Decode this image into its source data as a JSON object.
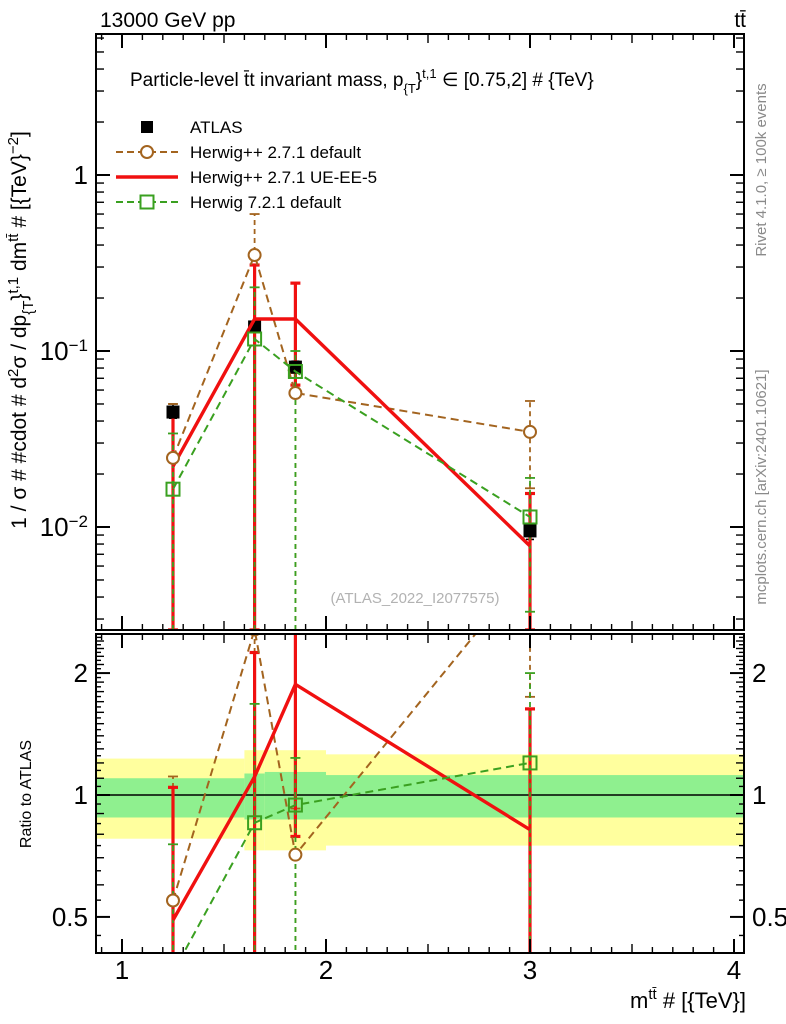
{
  "header": {
    "left": "13000 GeV pp",
    "right": "tt̄"
  },
  "plot_title": {
    "p1": "Particle-level t̄t invariant mass, p",
    "sub": "{T",
    "brace": "}",
    "sup": "t,1",
    "p2": " ∈ [0.75,2] # {TeV}"
  },
  "legend": {
    "entries": [
      {
        "label": "ATLAS"
      },
      {
        "label": "Herwig++ 2.7.1 default"
      },
      {
        "label": "Herwig++ 2.7.1 UE-EE-5"
      },
      {
        "label": "Herwig 7.2.1 default"
      }
    ]
  },
  "watermark": "(ATLAS_2022_I2077575)",
  "right_margin": {
    "top": "Rivet 4.1.0, ≥ 100k events",
    "bottom": "mcplots.cern.ch [arXiv:2401.10621]"
  },
  "axis_titles": {
    "y_main": {
      "p1": "1 / σ # #cdot # d",
      "sup1": "2",
      "p2": "σ / dp",
      "sub1": "{T",
      "p3": "}",
      "sup2": "t,1",
      "p4": " dm",
      "sup3": "tt̄",
      "p5": " # [{TeV}",
      "sup4": "−2",
      "p6": "]"
    },
    "x_main": {
      "p1": "m",
      "sup": "tt̄",
      "p2": " # [{TeV}]"
    },
    "y_ratio": "Ratio to ATLAS"
  },
  "chart_data": {
    "type": "line",
    "title": "Particle-level ttbar invariant mass, pT(t,1) in [0.75,2] TeV",
    "xlabel": "m(ttbar) [TeV]",
    "ylabel": "1/sigma d2sigma/dpT dm [TeV^-2]",
    "x": [
      1.25,
      1.65,
      1.85,
      3.0
    ],
    "xlim": [
      0.8725,
      4.049
    ],
    "ylim_main": [
      0.0026,
      6.3
    ],
    "ylim_ratio": [
      0.407,
      2.5
    ],
    "x_ticks": [
      {
        "v": 1,
        "label": "1"
      },
      {
        "v": 2,
        "label": "2"
      },
      {
        "v": 3,
        "label": "3"
      },
      {
        "v": 4,
        "label": "4"
      }
    ],
    "y_ticks_main": [
      {
        "v": 1,
        "base": "1",
        "exp": ""
      },
      {
        "v": 0.1,
        "base": "10",
        "exp": "−1"
      },
      {
        "v": 0.01,
        "base": "10",
        "exp": "−2"
      }
    ],
    "y_ticks_ratio": [
      {
        "v": 2,
        "label": "2"
      },
      {
        "v": 1,
        "label": "1"
      },
      {
        "v": 0.5,
        "label": "0.5"
      }
    ],
    "series": [
      {
        "name": "ATLAS",
        "color": "#000000",
        "style": "points",
        "marker": "filled-square",
        "values": [
          0.045,
          0.137,
          0.081,
          0.0095
        ],
        "err": [
          [
            0.0415,
            0.05
          ],
          [
            0.128,
            0.147
          ],
          [
            0.075,
            0.0875
          ],
          [
            0.0085,
            0.0105
          ]
        ]
      },
      {
        "name": "Herwig++ 2.7.1 default",
        "color": "#a3641f",
        "style": "dashed",
        "marker": "open-circle",
        "values": [
          0.0247,
          0.351,
          0.0577,
          0.0347
        ],
        "err": [
          [
            0.0026,
            0.05
          ],
          [
            0.0026,
            0.6
          ],
          [
            0.0026,
            0.075
          ],
          [
            0.0166,
            0.052
          ]
        ]
      },
      {
        "name": "Herwig++ 2.7.1 UE-EE-5",
        "color": "#f01010",
        "style": "solid",
        "marker": "none",
        "values": [
          0.0221,
          0.152,
          0.152,
          0.0078
        ],
        "err": [
          [
            0.0026,
            0.047
          ],
          [
            0.0026,
            0.308
          ],
          [
            0.064,
            0.243
          ],
          [
            0.0026,
            0.0155
          ]
        ]
      },
      {
        "name": "Herwig 7.2.1 default",
        "color": "#3aa020",
        "style": "dashed",
        "marker": "open-square",
        "values": [
          0.0164,
          0.117,
          0.0765,
          0.0114
        ],
        "err": [
          [
            0.0026,
            0.034
          ],
          [
            0.0026,
            0.23
          ],
          [
            0.0026,
            0.1
          ],
          [
            0.0033,
            0.019
          ]
        ]
      }
    ],
    "ratio_reference": 1,
    "ratio_bands": [
      {
        "x0": 0.8725,
        "x1": 1.6,
        "yellow": [
          0.78,
          1.23
        ],
        "green": [
          0.88,
          1.1
        ]
      },
      {
        "x0": 1.6,
        "x1": 1.7,
        "yellow": [
          0.73,
          1.29
        ],
        "green": [
          0.87,
          1.13
        ]
      },
      {
        "x0": 1.7,
        "x1": 2.0,
        "yellow": [
          0.73,
          1.29
        ],
        "green": [
          0.87,
          1.14
        ]
      },
      {
        "x0": 2.0,
        "x1": 4.049,
        "yellow": [
          0.75,
          1.26
        ],
        "green": [
          0.88,
          1.12
        ]
      }
    ],
    "band_colors": {
      "yellow": "#ffff9e",
      "green": "#8ff08f"
    }
  }
}
